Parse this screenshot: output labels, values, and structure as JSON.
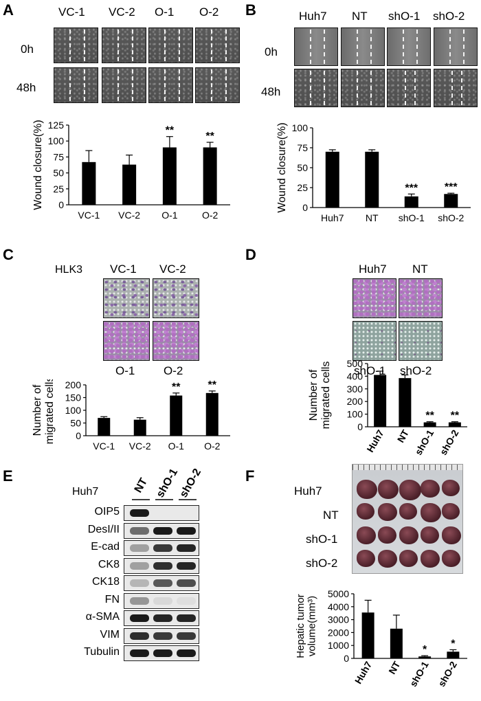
{
  "panels": {
    "A": {
      "label": "A",
      "columns": [
        "VC-1",
        "VC-2",
        "O-1",
        "O-2"
      ],
      "rows": [
        "0h",
        "48h"
      ],
      "chart_data": {
        "type": "bar",
        "categories": [
          "VC-1",
          "VC-2",
          "O-1",
          "O-2"
        ],
        "values": [
          67,
          63,
          90,
          90
        ],
        "errors": [
          18,
          15,
          17,
          8
        ],
        "significance": [
          "",
          "",
          "**",
          "**"
        ],
        "ylabel": "Wound closure(%)",
        "ylim": [
          0,
          125
        ],
        "yticks": [
          "0",
          "25",
          "50",
          "75",
          "100",
          "125"
        ]
      }
    },
    "B": {
      "label": "B",
      "columns": [
        "Huh7",
        "NT",
        "shO-1",
        "shO-2"
      ],
      "rows": [
        "0h",
        "48h"
      ],
      "chart_data": {
        "type": "bar",
        "categories": [
          "Huh7",
          "NT",
          "shO-1",
          "shO-2"
        ],
        "values": [
          70,
          70,
          14,
          17
        ],
        "errors": [
          2.5,
          2.5,
          3,
          1
        ],
        "significance": [
          "",
          "",
          "***",
          "***"
        ],
        "ylabel": "Wound closure(%)",
        "ylim": [
          0,
          100
        ],
        "yticks": [
          "0",
          "25",
          "50",
          "75",
          "100"
        ]
      }
    },
    "C": {
      "label": "C",
      "cell_line": "HLK3",
      "top_labels": [
        "VC-1",
        "VC-2"
      ],
      "bottom_labels": [
        "O-1",
        "O-2"
      ],
      "chart_data": {
        "type": "bar",
        "categories": [
          "VC-1",
          "VC-2",
          "O-1",
          "O-2"
        ],
        "values": [
          70,
          63,
          158,
          168
        ],
        "errors": [
          5,
          8,
          10,
          8
        ],
        "significance": [
          "",
          "",
          "**",
          "**"
        ],
        "ylabel": "Number of\nmigrated cells",
        "ylim": [
          0,
          200
        ],
        "yticks": [
          "0",
          "50",
          "100",
          "150",
          "200"
        ]
      }
    },
    "D": {
      "label": "D",
      "top_labels": [
        "Huh7",
        "NT"
      ],
      "bottom_labels": [
        "shO-1",
        "shO-2"
      ],
      "chart_data": {
        "type": "bar",
        "categories": [
          "Huh7",
          "NT",
          "shO-1",
          "shO-2"
        ],
        "values": [
          410,
          385,
          35,
          35
        ],
        "errors": [
          30,
          25,
          5,
          5
        ],
        "significance": [
          "",
          "",
          "**",
          "**"
        ],
        "ylabel": "Number of\nmigrated cells",
        "ylim": [
          0,
          500
        ],
        "yticks": [
          "0",
          "100",
          "200",
          "300",
          "400",
          "500"
        ]
      }
    },
    "E": {
      "label": "E",
      "cell_line": "Huh7",
      "lanes": [
        "NT",
        "shO-1",
        "shO-2"
      ],
      "proteins": [
        "OIP5",
        "DesI/II",
        "E-cad",
        "CK8",
        "CK18",
        "FN",
        "α-SMA",
        "VIM",
        "Tubulin"
      ]
    },
    "F": {
      "label": "F",
      "groups": [
        "Huh7",
        "NT",
        "shO-1",
        "shO-2"
      ],
      "chart_data": {
        "type": "bar",
        "categories": [
          "Huh7",
          "NT",
          "shO-1",
          "shO-2"
        ],
        "values": [
          3550,
          2300,
          150,
          520
        ],
        "errors": [
          950,
          1050,
          60,
          150
        ],
        "significance": [
          "",
          "",
          "*",
          "*"
        ],
        "ylabel": "Hepatic tumor\nvolume(mm³)",
        "ylim": [
          0,
          5000
        ],
        "yticks": [
          "0",
          "1000",
          "2000",
          "3000",
          "4000",
          "5000"
        ]
      }
    }
  }
}
